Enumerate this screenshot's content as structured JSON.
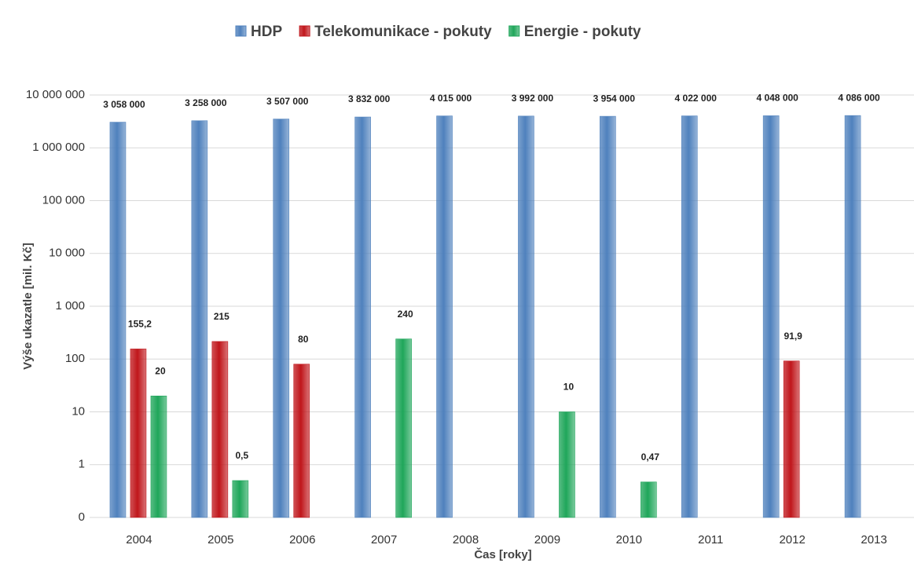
{
  "chart_data": {
    "type": "bar",
    "y_axis_label": "Výše ukazatle [mil. Kč]",
    "x_axis_label": "Čas [roky]",
    "categories": [
      "2004",
      "2005",
      "2006",
      "2007",
      "2008",
      "2009",
      "2010",
      "2011",
      "2012",
      "2013"
    ],
    "series": [
      {
        "name": "HDP",
        "color": "#4f81bd",
        "values": [
          3058000,
          3258000,
          3507000,
          3832000,
          4015000,
          3992000,
          3954000,
          4022000,
          4048000,
          4086000
        ],
        "value_labels": [
          "3 058 000",
          "3 258 000",
          "3 507 000",
          "3 832 000",
          "4 015 000",
          "3 992 000",
          "3 954 000",
          "4 022 000",
          "4 048 000",
          "4 086 000"
        ]
      },
      {
        "name": "Telekomunikace - pokuty",
        "color": "#c0161b",
        "values": [
          155.2,
          215,
          80,
          null,
          null,
          null,
          null,
          null,
          91.9,
          null
        ],
        "value_labels": [
          "155,2",
          "215",
          "80",
          null,
          null,
          null,
          null,
          null,
          "91,9",
          null
        ]
      },
      {
        "name": "Energie - pokuty",
        "color": "#1fa65a",
        "values": [
          20,
          0.5,
          null,
          240,
          null,
          10,
          0.47,
          null,
          null,
          null
        ],
        "value_labels": [
          "20",
          "0,5",
          null,
          "240",
          null,
          "10",
          "0,47",
          null,
          null,
          null
        ]
      }
    ],
    "log_scale": true,
    "ylim": [
      0.1,
      10000000
    ],
    "yticks": [
      {
        "value": 0.1,
        "label": "0"
      },
      1,
      10,
      100,
      {
        "value": 1000,
        "label": "1 000"
      },
      {
        "value": 10000,
        "label": "10 000"
      },
      {
        "value": 100000,
        "label": "100 000"
      },
      {
        "value": 1000000,
        "label": "1 000 000"
      },
      {
        "value": 10000000,
        "label": "10 000 000"
      }
    ],
    "grid": true,
    "legend": "top"
  }
}
